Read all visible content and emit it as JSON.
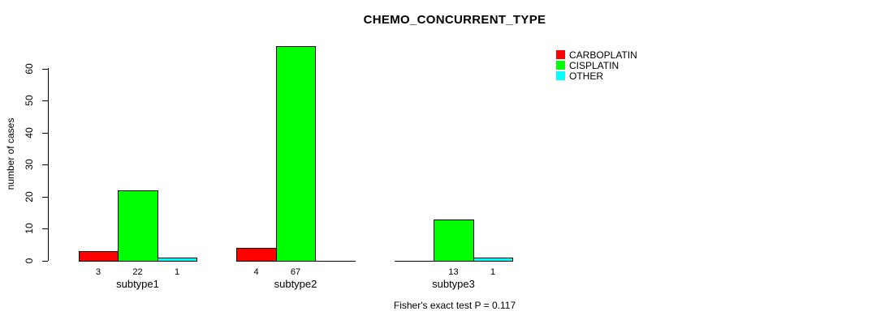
{
  "title": "CHEMO_CONCURRENT_TYPE",
  "annotation": "Fisher's exact test P = 0.117",
  "colors": {
    "background": "#FFFFFF",
    "axis": "#000000",
    "carboplatin": "#FF0000",
    "cisplatin": "#00FF00",
    "other": "#00FFFF"
  },
  "chart_data": {
    "type": "bar",
    "title": "CHEMO_CONCURRENT_TYPE",
    "xlabel": "",
    "ylabel": "number of cases",
    "categories": [
      "subtype1",
      "subtype2",
      "subtype3"
    ],
    "series": [
      {
        "name": "CARBOPLATIN",
        "color": "#FF0000",
        "values": [
          3,
          4,
          0
        ]
      },
      {
        "name": "CISPLATIN",
        "color": "#00FF00",
        "values": [
          22,
          67,
          13
        ]
      },
      {
        "name": "OTHER",
        "color": "#00FFFF",
        "values": [
          1,
          0,
          1
        ]
      }
    ],
    "bar_value_labels": [
      [
        "3",
        "22",
        "1"
      ],
      [
        "4",
        "67",
        ""
      ],
      [
        "",
        "13",
        "1"
      ]
    ],
    "yticks": [
      0,
      10,
      20,
      30,
      40,
      50,
      60
    ],
    "ylim": [
      0,
      67
    ],
    "grid": false,
    "legend_position": "top-right",
    "annotation": "Fisher's exact test P = 0.117"
  }
}
